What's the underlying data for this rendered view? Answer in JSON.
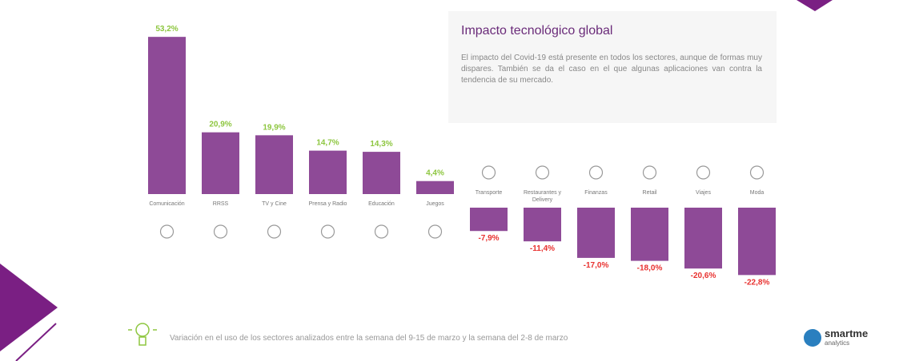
{
  "chart_data": {
    "type": "bar",
    "categories": [
      "Comunicación",
      "RRSS",
      "TV y Cine",
      "Prensa y Radio",
      "Educación",
      "Juegos",
      "Transporte",
      "Restaurantes y Delivery",
      "Finanzas",
      "Retail",
      "Viajes",
      "Moda"
    ],
    "values": [
      53.2,
      20.9,
      19.9,
      14.7,
      14.3,
      4.4,
      -7.9,
      -11.4,
      -17.0,
      -18.0,
      -20.6,
      -22.8
    ],
    "value_labels": [
      "53,2%",
      "20,9%",
      "19,9%",
      "14,7%",
      "14,3%",
      "4,4%",
      "-7,9%",
      "-11,4%",
      "-17,0%",
      "-18,0%",
      "-20,6%",
      "-22,8%"
    ],
    "color": "#8e4a97",
    "positive_label_color": "#8dc63f",
    "negative_label_color": "#e8312f"
  },
  "text_box": {
    "title": "Impacto tecnológico global",
    "body": "El impacto del Covid-19 está presente en todos los sectores, aunque de formas muy dispares. También se da el caso en el que algunas aplicaciones van contra la tendencia de su mercado."
  },
  "caption": "Variación en el uso de los sectores analizados entre la semana del 9-15 de marzo y la semana del 2-8 de marzo",
  "logo": {
    "name": "smartme",
    "sub": "analytics"
  }
}
